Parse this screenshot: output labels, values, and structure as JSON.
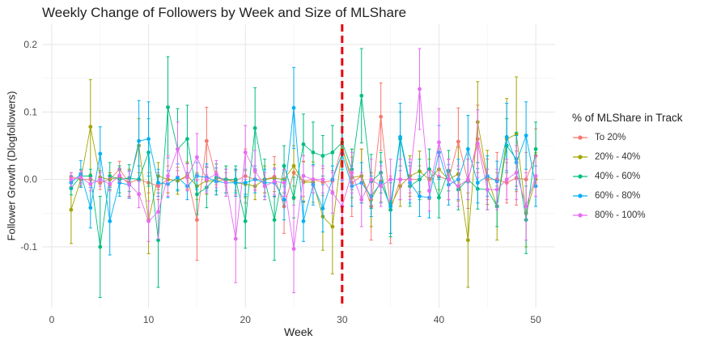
{
  "chart_data": {
    "type": "line",
    "title": "Weekly Change of Followers by Week and Size of MLShare",
    "xlabel": "Week",
    "ylabel": "Follower Growth (Dlogfollowers)",
    "xlim": [
      -1,
      52
    ],
    "ylim": [
      -0.19,
      0.23
    ],
    "x_ticks": [
      0,
      10,
      20,
      30,
      40,
      50
    ],
    "x_tick_labels": [
      "0",
      "10",
      "20",
      "30",
      "40",
      "50"
    ],
    "y_ticks": [
      -0.1,
      0.0,
      0.1,
      0.2
    ],
    "y_tick_labels": [
      "-0.1",
      "0.0",
      "0.1",
      "0.2"
    ],
    "vline": {
      "x": 30,
      "color": "#e8000b",
      "style": "dashed"
    },
    "grid": true,
    "legend": {
      "title": "% of MLShare in Track",
      "position": "right"
    },
    "x": [
      2,
      3,
      4,
      5,
      6,
      7,
      8,
      9,
      10,
      11,
      12,
      13,
      14,
      15,
      16,
      17,
      18,
      19,
      20,
      21,
      22,
      23,
      24,
      25,
      26,
      27,
      28,
      29,
      30,
      31,
      32,
      33,
      34,
      35,
      36,
      37,
      38,
      39,
      40,
      41,
      42,
      43,
      44,
      45,
      46,
      47,
      48,
      49,
      50
    ],
    "series": [
      {
        "name": "To 20%",
        "color": "#F8766D",
        "values": [
          0.004,
          0.0,
          0.0,
          -0.005,
          0.0,
          0.015,
          -0.005,
          0.0,
          -0.005,
          -0.01,
          0.0,
          -0.002,
          0.004,
          -0.06,
          0.057,
          0.002,
          0.0,
          -0.002,
          0.005,
          0.0,
          0.0,
          0.004,
          -0.04,
          0.01,
          -0.003,
          0.0,
          -0.004,
          -0.002,
          0.05,
          -0.005,
          0.005,
          -0.04,
          0.093,
          -0.045,
          0.0,
          0.0,
          0.0,
          0.015,
          0.004,
          0.0,
          0.056,
          -0.003,
          0.06,
          0.0,
          0.0,
          -0.005,
          0.002,
          0.0,
          0.035
        ],
        "err": [
          0.006,
          0.01,
          0.008,
          0.01,
          0.01,
          0.012,
          0.02,
          0.02,
          0.015,
          0.02,
          0.02,
          0.015,
          0.02,
          0.06,
          0.05,
          0.01,
          0.01,
          0.015,
          0.04,
          0.015,
          0.02,
          0.03,
          0.04,
          0.04,
          0.03,
          0.02,
          0.02,
          0.015,
          0.05,
          0.05,
          0.04,
          0.05,
          0.05,
          0.05,
          0.03,
          0.02,
          0.02,
          0.03,
          0.03,
          0.03,
          0.05,
          0.04,
          0.05,
          0.03,
          0.04,
          0.03,
          0.04,
          0.04,
          0.04
        ]
      },
      {
        "name": "20% - 40%",
        "color": "#A3A500",
        "values": [
          -0.045,
          0.0,
          0.078,
          0.003,
          0.0,
          0.004,
          -0.005,
          0.05,
          -0.06,
          0.005,
          0.0,
          -0.002,
          0.006,
          -0.01,
          -0.002,
          -0.003,
          0.0,
          -0.005,
          -0.007,
          -0.01,
          0.0,
          0.002,
          0.0,
          0.02,
          -0.004,
          -0.004,
          -0.055,
          -0.07,
          0.045,
          0.003,
          0.005,
          -0.03,
          -0.003,
          -0.04,
          -0.01,
          0.005,
          0.012,
          0.0,
          0.015,
          0.0,
          0.008,
          -0.09,
          0.085,
          0.003,
          -0.04,
          0.06,
          0.067,
          -0.05,
          0.0
        ],
        "err": [
          0.05,
          0.01,
          0.07,
          0.01,
          0.01,
          0.01,
          0.02,
          0.04,
          0.05,
          0.02,
          0.02,
          0.02,
          0.02,
          0.02,
          0.02,
          0.02,
          0.02,
          0.02,
          0.02,
          0.02,
          0.02,
          0.02,
          0.02,
          0.03,
          0.03,
          0.03,
          0.05,
          0.07,
          0.05,
          0.03,
          0.04,
          0.04,
          0.03,
          0.04,
          0.03,
          0.03,
          0.03,
          0.03,
          0.03,
          0.03,
          0.04,
          0.07,
          0.06,
          0.04,
          0.05,
          0.06,
          0.085,
          0.05,
          0.04
        ]
      },
      {
        "name": "40% - 60%",
        "color": "#00BF7D",
        "values": [
          -0.013,
          0.005,
          0.005,
          -0.1,
          0.005,
          0.0,
          0.002,
          0.0,
          0.04,
          -0.09,
          0.107,
          0.045,
          0.06,
          -0.022,
          -0.012,
          0.003,
          0.0,
          0.0,
          -0.062,
          0.076,
          0.0,
          -0.06,
          0.02,
          -0.027,
          0.052,
          0.04,
          0.035,
          0.04,
          0.055,
          0.015,
          0.124,
          -0.003,
          0.01,
          -0.045,
          0.06,
          -0.01,
          0.0,
          0.015,
          -0.027,
          0.013,
          -0.015,
          0.0,
          -0.014,
          -0.015,
          -0.04,
          0.05,
          0.03,
          -0.06,
          0.045
        ],
        "err": [
          0.01,
          0.01,
          0.01,
          0.075,
          0.02,
          0.02,
          0.02,
          0.02,
          0.05,
          0.07,
          0.075,
          0.06,
          0.05,
          0.03,
          0.03,
          0.02,
          0.02,
          0.02,
          0.04,
          0.06,
          0.03,
          0.06,
          0.03,
          0.03,
          0.045,
          0.045,
          0.03,
          0.04,
          0.04,
          0.03,
          0.07,
          0.04,
          0.03,
          0.04,
          0.04,
          0.03,
          0.03,
          0.03,
          0.03,
          0.03,
          0.03,
          0.03,
          0.03,
          0.03,
          0.03,
          0.04,
          0.04,
          0.05,
          0.04
        ]
      },
      {
        "name": "60% - 80%",
        "color": "#00B0F6",
        "values": [
          -0.005,
          0.008,
          -0.042,
          0.038,
          -0.062,
          -0.005,
          -0.008,
          0.057,
          0.06,
          -0.005,
          -0.007,
          0.003,
          -0.01,
          0.005,
          0.003,
          -0.003,
          -0.005,
          -0.005,
          -0.005,
          0.0,
          -0.005,
          -0.005,
          -0.03,
          0.106,
          -0.062,
          -0.008,
          -0.043,
          0.0,
          0.038,
          -0.01,
          -0.005,
          -0.025,
          -0.005,
          -0.04,
          0.063,
          -0.005,
          -0.025,
          -0.027,
          0.04,
          -0.008,
          0.0,
          0.045,
          -0.005,
          0.005,
          -0.003,
          0.063,
          0.025,
          0.065,
          -0.01
        ],
        "err": [
          0.01,
          0.02,
          0.03,
          0.04,
          0.05,
          0.02,
          0.02,
          0.06,
          0.055,
          0.02,
          0.02,
          0.02,
          0.02,
          0.02,
          0.02,
          0.02,
          0.02,
          0.02,
          0.02,
          0.02,
          0.02,
          0.02,
          0.03,
          0.06,
          0.03,
          0.03,
          0.035,
          0.02,
          0.04,
          0.03,
          0.03,
          0.03,
          0.03,
          0.04,
          0.05,
          0.03,
          0.03,
          0.03,
          0.04,
          0.03,
          0.03,
          0.05,
          0.03,
          0.03,
          0.03,
          0.05,
          0.04,
          0.05,
          0.03
        ]
      },
      {
        "name": "80% - 100%",
        "color": "#E76BF3",
        "values": [
          0.0,
          0.003,
          -0.007,
          0.0,
          -0.007,
          0.006,
          -0.007,
          -0.022,
          -0.062,
          -0.048,
          0.005,
          0.045,
          0.003,
          0.033,
          0.0,
          0.008,
          -0.005,
          -0.088,
          0.04,
          0.013,
          -0.01,
          -0.003,
          -0.005,
          -0.103,
          0.005,
          0.0,
          0.0,
          -0.02,
          -0.04,
          0.01,
          -0.03,
          0.0,
          -0.01,
          0.0,
          0.0,
          0.0,
          0.134,
          -0.017,
          0.055,
          0.0,
          -0.01,
          0.0,
          0.053,
          -0.015,
          -0.015,
          0.0,
          0.01,
          -0.04,
          0.005
        ],
        "err": [
          0.01,
          0.01,
          0.01,
          0.01,
          0.01,
          0.01,
          0.02,
          0.02,
          0.03,
          0.04,
          0.03,
          0.04,
          0.02,
          0.035,
          0.02,
          0.02,
          0.02,
          0.065,
          0.04,
          0.03,
          0.02,
          0.02,
          0.02,
          0.065,
          0.03,
          0.02,
          0.02,
          0.03,
          0.04,
          0.03,
          0.04,
          0.03,
          0.03,
          0.03,
          0.03,
          0.03,
          0.06,
          0.03,
          0.05,
          0.03,
          0.03,
          0.03,
          0.05,
          0.03,
          0.03,
          0.03,
          0.04,
          0.05,
          0.03
        ]
      }
    ]
  }
}
